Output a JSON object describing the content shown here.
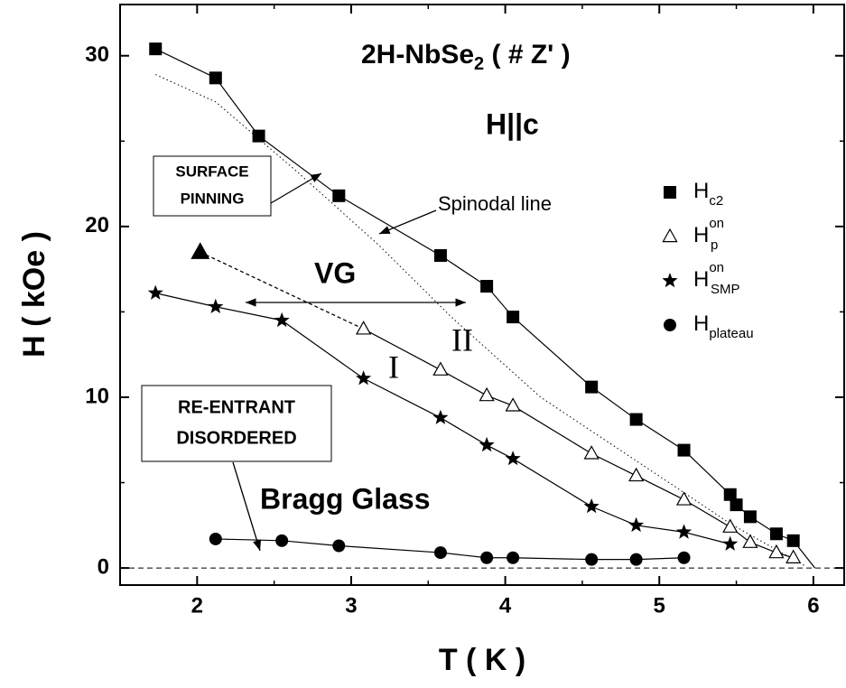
{
  "chart_data": {
    "type": "scatter",
    "title": {
      "main": "2H-NbSe",
      "sub": "2",
      "rest": " ( # Z' )"
    },
    "xlabel": "T ( K )",
    "ylabel": "H ( kOe )",
    "xlim": [
      1.5,
      6.2
    ],
    "ylim": [
      -1,
      33
    ],
    "xticks": [
      2,
      3,
      4,
      5,
      6
    ],
    "yticks": [
      0,
      10,
      20,
      30
    ],
    "xticks_minor": [
      1.5,
      2.5,
      3.5,
      4.5,
      5.5
    ],
    "yticks_minor": [
      5,
      15,
      25
    ],
    "series": [
      {
        "symbol": "H",
        "sub": "c2",
        "marker": "square",
        "color": "#000000",
        "x": [
          1.73,
          2.12,
          2.4,
          2.92,
          3.58,
          3.88,
          4.05,
          4.56,
          4.85,
          5.16,
          5.46,
          5.5,
          5.59,
          5.76,
          5.87
        ],
        "values": [
          30.4,
          28.7,
          25.3,
          21.8,
          18.3,
          16.5,
          14.7,
          10.6,
          8.7,
          6.9,
          4.3,
          3.7,
          3.0,
          2.0,
          1.6
        ]
      },
      {
        "symbol": "H",
        "sub": "p",
        "sup": "on",
        "marker": "open-triangle",
        "color": "#000000",
        "x": [
          3.08,
          3.58,
          3.88,
          4.05,
          4.56,
          4.85,
          5.16,
          5.46,
          5.59,
          5.76,
          5.87
        ],
        "values": [
          14.0,
          11.6,
          10.1,
          9.5,
          6.7,
          5.4,
          4.0,
          2.4,
          1.5,
          0.9,
          0.6
        ]
      },
      {
        "symbol": "H",
        "sub": "SMP",
        "sup": "on",
        "marker": "star",
        "color": "#000000",
        "x": [
          1.73,
          2.12,
          2.55,
          3.08,
          3.58,
          3.88,
          4.05,
          4.56,
          4.85,
          5.16,
          5.46
        ],
        "values": [
          16.1,
          15.3,
          14.5,
          11.1,
          8.8,
          7.2,
          6.4,
          3.6,
          2.5,
          2.1,
          1.4
        ]
      },
      {
        "symbol": "H",
        "sub": "plateau",
        "marker": "circle",
        "color": "#000000",
        "x": [
          2.12,
          2.55,
          2.92,
          3.58,
          3.88,
          4.05,
          4.56,
          4.85,
          5.16
        ],
        "values": [
          1.7,
          1.6,
          1.3,
          0.9,
          0.6,
          0.6,
          0.5,
          0.5,
          0.6
        ]
      }
    ],
    "hc2_line_end": [
      6.01,
      0
    ],
    "extrapolated_point": [
      2.02,
      18.5
    ],
    "spinodal_line": {
      "label": "Spinodal line",
      "x": [
        1.73,
        2.12,
        2.65,
        3.18,
        3.65,
        4.23,
        4.93,
        5.46,
        5.95
      ],
      "values": [
        28.9,
        27.3,
        23.2,
        18.9,
        14.7,
        10.0,
        5.8,
        2.6,
        0.1
      ]
    },
    "annotations": {
      "field": "H||c",
      "vg": "VG",
      "region_1": "I",
      "region_2": "II",
      "bragg": "Bragg Glass",
      "surface": [
        "SURFACE",
        "PINNING"
      ],
      "reentrant": [
        "RE-ENTRANT",
        "DISORDERED"
      ]
    }
  }
}
